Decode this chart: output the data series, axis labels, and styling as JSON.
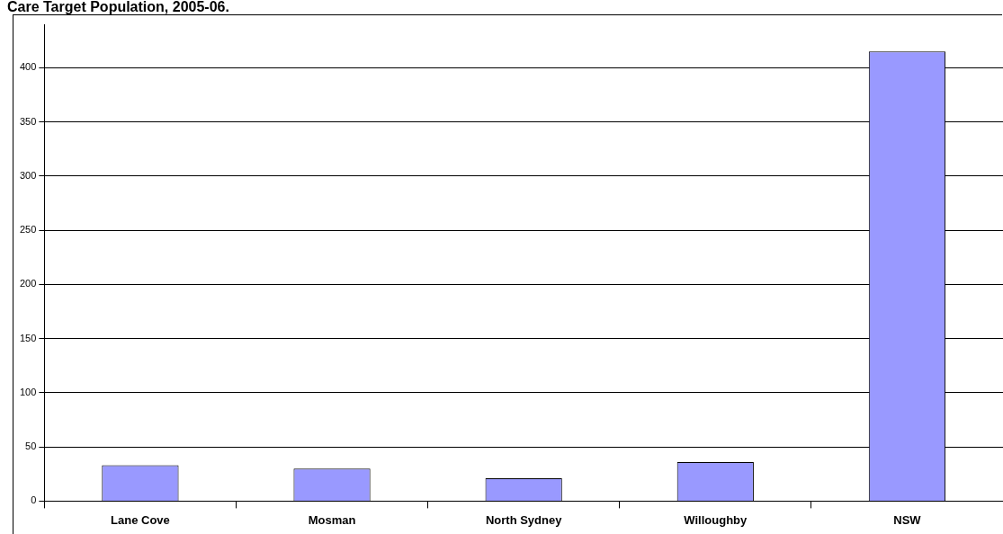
{
  "chart_data": {
    "type": "bar",
    "title": "Care Target Population, 2005-06.",
    "categories": [
      "Lane Cove",
      "Mosman",
      "North Sydney",
      "Willoughby",
      "NSW"
    ],
    "values": [
      33,
      30,
      21,
      36,
      415
    ],
    "color": "#9999ff",
    "ylim": [
      0,
      440
    ],
    "yticks": [
      0,
      50,
      100,
      150,
      200,
      250,
      300,
      350,
      400
    ],
    "grid": "y"
  }
}
